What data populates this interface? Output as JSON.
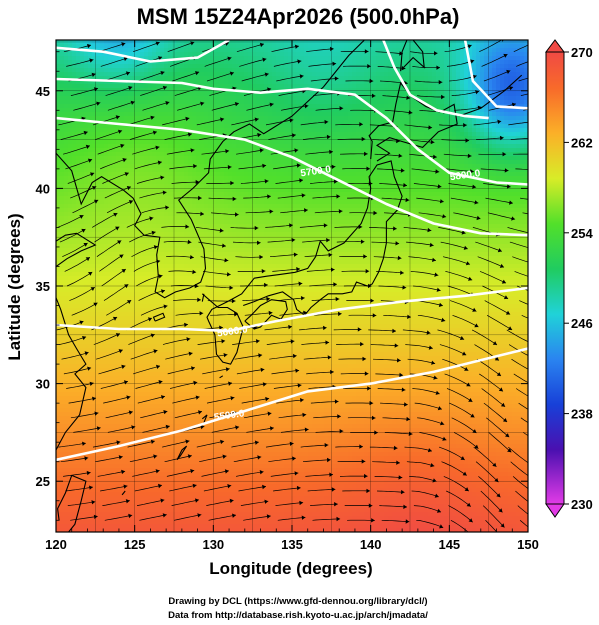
{
  "chart_data": {
    "type": "heatmap",
    "title": "MSM 15Z24Apr2026 (500.0hPa)",
    "xlabel": "Longitude (degrees)",
    "ylabel": "Latitude  (degrees)",
    "xlim": [
      120,
      150
    ],
    "ylim": [
      22.4,
      47.6
    ],
    "x_ticks": [
      120,
      125,
      130,
      135,
      140,
      145,
      150
    ],
    "y_ticks": [
      25,
      30,
      35,
      40,
      45
    ],
    "colorbar": {
      "min": 230,
      "max": 270,
      "ticks": [
        230,
        238,
        246,
        254,
        262,
        270
      ],
      "placement": "right"
    },
    "overlays": [
      "streamlines",
      "contours",
      "coastlines",
      "grid"
    ],
    "contours": [
      {
        "label": "5500.0",
        "points": [
          [
            120,
            26.1
          ],
          [
            124,
            26.8
          ],
          [
            128,
            27.6
          ],
          [
            132,
            28.6
          ],
          [
            136,
            29.6
          ],
          [
            140,
            30.0
          ],
          [
            144,
            30.6
          ],
          [
            148,
            31.4
          ],
          [
            150,
            31.8
          ]
        ]
      },
      {
        "label": "5600.0",
        "points": [
          [
            120,
            33.0
          ],
          [
            124,
            32.8
          ],
          [
            128,
            32.8
          ],
          [
            131,
            32.7
          ],
          [
            134,
            33.2
          ],
          [
            138,
            33.8
          ],
          [
            142,
            34.2
          ],
          [
            146,
            34.5
          ],
          [
            150,
            34.9
          ]
        ]
      },
      {
        "label": "5700.0",
        "points": [
          [
            120,
            43.6
          ],
          [
            124,
            43.3
          ],
          [
            128,
            43.0
          ],
          [
            132,
            42.5
          ],
          [
            135,
            41.6
          ],
          [
            138,
            40.4
          ],
          [
            141,
            39.2
          ],
          [
            144,
            38.2
          ],
          [
            147,
            37.7
          ],
          [
            150,
            37.6
          ]
        ]
      },
      {
        "label": "5800.0",
        "points": [
          [
            120,
            45.6
          ],
          [
            124,
            45.5
          ],
          [
            128,
            45.4
          ],
          [
            130,
            45.1
          ],
          [
            133,
            44.9
          ],
          [
            136,
            45.1
          ],
          [
            139,
            44.8
          ],
          [
            141,
            43.6
          ],
          [
            143,
            42.0
          ],
          [
            145,
            40.8
          ],
          [
            148,
            40.3
          ],
          [
            150,
            40.2
          ]
        ]
      },
      {
        "label": "",
        "points": [
          [
            120,
            47.2
          ],
          [
            123,
            47.0
          ],
          [
            126,
            46.5
          ],
          [
            129,
            46.7
          ],
          [
            131,
            47.6
          ]
        ]
      },
      {
        "label": "",
        "points": [
          [
            140.8,
            47.6
          ],
          [
            141.5,
            46.2
          ],
          [
            142.5,
            44.8
          ],
          [
            144.2,
            44.0
          ],
          [
            146.0,
            43.7
          ],
          [
            147.5,
            43.6
          ]
        ]
      },
      {
        "label": "",
        "points": [
          [
            146,
            47.6
          ],
          [
            146.5,
            45.5
          ],
          [
            148.0,
            44.2
          ],
          [
            150,
            44.1
          ]
        ]
      }
    ],
    "labeled_contour_values": [
      "5500.0",
      "5600.0",
      "5700.0",
      "5800.0"
    ],
    "credits": [
      "Drawing by DCL (https://www.gfd-dennou.org/library/dcl/)",
      "Data from http://database.rish.kyoto-u.ac.jp/arch/jmadata/"
    ]
  }
}
